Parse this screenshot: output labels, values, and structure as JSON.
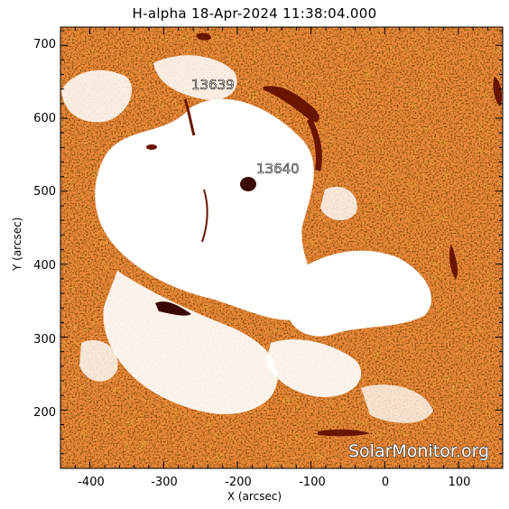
{
  "title": "H-alpha 18-Apr-2024 11:38:04.000",
  "x_axis": {
    "label": "X (arcsec)",
    "ticks": [
      "-400",
      "-300",
      "-200",
      "-100",
      "0",
      "100"
    ],
    "range": [
      -440,
      160
    ]
  },
  "y_axis": {
    "label": "Y (arcsec)",
    "ticks": [
      "200",
      "300",
      "400",
      "500",
      "600",
      "700"
    ],
    "range": [
      120,
      725
    ]
  },
  "regions": [
    {
      "label": "13639",
      "x": -230,
      "y": 640
    },
    {
      "label": "13640",
      "x": -170,
      "y": 528
    }
  ],
  "watermark": "SolarMonitor.org",
  "colors": {
    "background": "#f08a3a",
    "dark": "#2b0d00",
    "plage": "#ffffff",
    "filament": "#7a1a00"
  }
}
